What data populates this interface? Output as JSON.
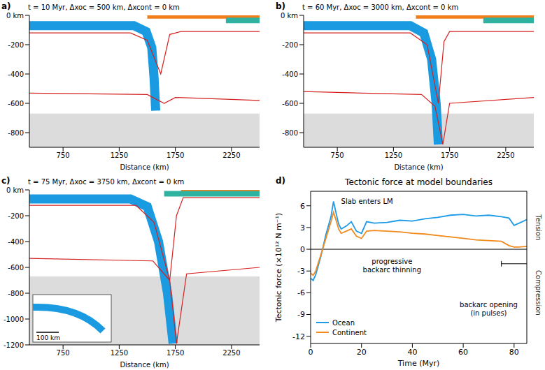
{
  "chart_data": [
    {
      "type": "line",
      "panel_label": "a)",
      "title": "t = 10 Myr, Δxoc = 500 km, Δxcont = 0 km",
      "xlabel": "Distance (km)",
      "xlim": [
        450,
        2500
      ],
      "xticks": [
        750,
        1250,
        1750,
        2250
      ],
      "ylim": [
        -900,
        0
      ],
      "yticks": [
        {
          "value": 0,
          "label": "0 km"
        },
        -200,
        -400,
        -600,
        -800
      ],
      "shaded_ylim": [
        -900,
        -670
      ],
      "series": [
        {
          "color": "#f07f1a",
          "x": [
            1500,
            2500
          ],
          "values": [
            -8,
            -8
          ]
        },
        {
          "color": "#2fb3a0",
          "x": [
            2200,
            2500
          ],
          "values": [
            -35,
            -35
          ]
        },
        {
          "color": "#1a9ae0",
          "x": [
            450,
            1380,
            1490,
            1540,
            1560,
            1575
          ],
          "values": [
            -70,
            -70,
            -110,
            -220,
            -420,
            -650
          ]
        },
        {
          "color": "#d62020",
          "x": [
            450,
            1350,
            1500,
            1620,
            1700,
            1800,
            2500
          ],
          "values": [
            -120,
            -120,
            -170,
            -400,
            -130,
            -110,
            -110
          ]
        },
        {
          "color": "#d62020",
          "x": [
            450,
            1500,
            1650,
            1750,
            2500
          ],
          "values": [
            -530,
            -540,
            -600,
            -560,
            -580
          ]
        }
      ]
    },
    {
      "type": "line",
      "panel_label": "b)",
      "title": "t = 60 Myr, Δxoc = 3000 km, Δxcont = 0 km",
      "xlabel": "Distance (km)",
      "xlim": [
        450,
        2500
      ],
      "xticks": [
        750,
        1250,
        1750,
        2250
      ],
      "ylim": [
        -900,
        0
      ],
      "yticks": [
        {
          "value": 0,
          "label": "0 km"
        },
        -200,
        -400,
        -600,
        -800
      ],
      "shaded_ylim": [
        -900,
        -670
      ],
      "series": [
        {
          "color": "#f07f1a",
          "x": [
            1450,
            2500
          ],
          "values": [
            -8,
            -8
          ]
        },
        {
          "color": "#2fb3a0",
          "x": [
            2050,
            2500
          ],
          "values": [
            -35,
            -35
          ]
        },
        {
          "color": "#1a9ae0",
          "x": [
            450,
            1400,
            1520,
            1590,
            1630,
            1650
          ],
          "values": [
            -70,
            -70,
            -120,
            -300,
            -600,
            -880
          ]
        },
        {
          "color": "#d62020",
          "x": [
            450,
            1400,
            1550,
            1650,
            1700,
            1750,
            2500
          ],
          "values": [
            -120,
            -120,
            -200,
            -600,
            -180,
            -110,
            -110
          ]
        },
        {
          "color": "#d62020",
          "x": [
            450,
            1500,
            1620,
            1690,
            1750,
            2500
          ],
          "values": [
            -520,
            -540,
            -620,
            -880,
            -600,
            -560
          ]
        }
      ]
    },
    {
      "type": "line",
      "panel_label": "c)",
      "title": "t = 75 Myr, Δxoc = 3750 km, Δxcont = 0 km",
      "xlabel": "Distance (km)",
      "xlim": [
        450,
        2500
      ],
      "xticks": [
        750,
        1250,
        1750,
        2250
      ],
      "ylim": [
        -1200,
        0
      ],
      "yticks": [
        {
          "value": 0,
          "label": "0 km"
        },
        -200,
        -400,
        -600,
        -800,
        -1000,
        -1200
      ],
      "shaded_ylim": [
        -1200,
        -670
      ],
      "inset_scale_label": "100 km",
      "series": [
        {
          "color": "#f07f1a",
          "x": [
            1800,
            2500
          ],
          "values": [
            -8,
            -8
          ]
        },
        {
          "color": "#2fb3a0",
          "x": [
            1650,
            2500
          ],
          "values": [
            -30,
            -30
          ]
        },
        {
          "color": "#1a9ae0",
          "x": [
            450,
            1350,
            1500,
            1600,
            1680,
            1730
          ],
          "values": [
            -70,
            -70,
            -130,
            -400,
            -800,
            -1190
          ]
        },
        {
          "color": "#d62020",
          "x": [
            450,
            1400,
            1560,
            1700,
            1760,
            1820,
            2500
          ],
          "values": [
            -120,
            -120,
            -250,
            -700,
            -200,
            -60,
            -60
          ]
        },
        {
          "color": "#d62020",
          "x": [
            450,
            1550,
            1700,
            1760,
            1850,
            2500
          ],
          "values": [
            -530,
            -550,
            -700,
            -1190,
            -650,
            -600
          ]
        }
      ]
    },
    {
      "type": "line",
      "panel_label": "d)",
      "title": "Tectonic force at model boundaries",
      "xlabel": "Time (Myr)",
      "ylabel": "Tectonic force (×10¹² N m⁻¹)",
      "xlim": [
        0,
        85
      ],
      "xticks": [
        0,
        20,
        40,
        60,
        80
      ],
      "ylim": [
        -13,
        8
      ],
      "yticks": [
        -12,
        -9,
        -6,
        -3,
        0,
        3,
        6
      ],
      "zero_line": 0,
      "legend": "lower left",
      "x": [
        0,
        1,
        2,
        4,
        6,
        8,
        9,
        10,
        11,
        12,
        14,
        16,
        18,
        20,
        22,
        25,
        30,
        35,
        40,
        45,
        50,
        55,
        60,
        65,
        70,
        75,
        78,
        80,
        82,
        85
      ],
      "series": [
        {
          "name": "Ocean",
          "color": "#1e9be8",
          "values": [
            -4,
            -4.3,
            -3.5,
            -1,
            2,
            4.5,
            6.6,
            5,
            3.5,
            2.8,
            3.2,
            3.8,
            2.5,
            2.2,
            3.8,
            3.6,
            3.7,
            4,
            3.9,
            4.2,
            4.4,
            4.7,
            4.8,
            4.6,
            4.7,
            4.5,
            4.3,
            3.3,
            3.6,
            4.1
          ]
        },
        {
          "name": "Continent",
          "color": "#f28a1c",
          "values": [
            -3.3,
            -3.6,
            -3,
            -0.8,
            1.5,
            3.8,
            5.1,
            4,
            2.8,
            2.2,
            2.5,
            2.8,
            1.8,
            1.5,
            2.5,
            2.6,
            2.5,
            2.4,
            2.2,
            2.1,
            1.9,
            1.7,
            1.5,
            1.3,
            1.2,
            1.1,
            0.5,
            0.3,
            0.3,
            0.4
          ]
        }
      ],
      "annotations": [
        {
          "text": "Slab enters LM",
          "x": 12,
          "y": 6.3
        },
        {
          "text": "progressive backarc thinning",
          "x": 32,
          "y": -2
        },
        {
          "text": "backarc opening (in pulses)",
          "x": 70,
          "y": -8
        }
      ],
      "backarc_opening": {
        "x": [
          75,
          85
        ],
        "y": -2
      },
      "side_labels": {
        "top": "Tension",
        "bottom": "Compression"
      }
    }
  ]
}
